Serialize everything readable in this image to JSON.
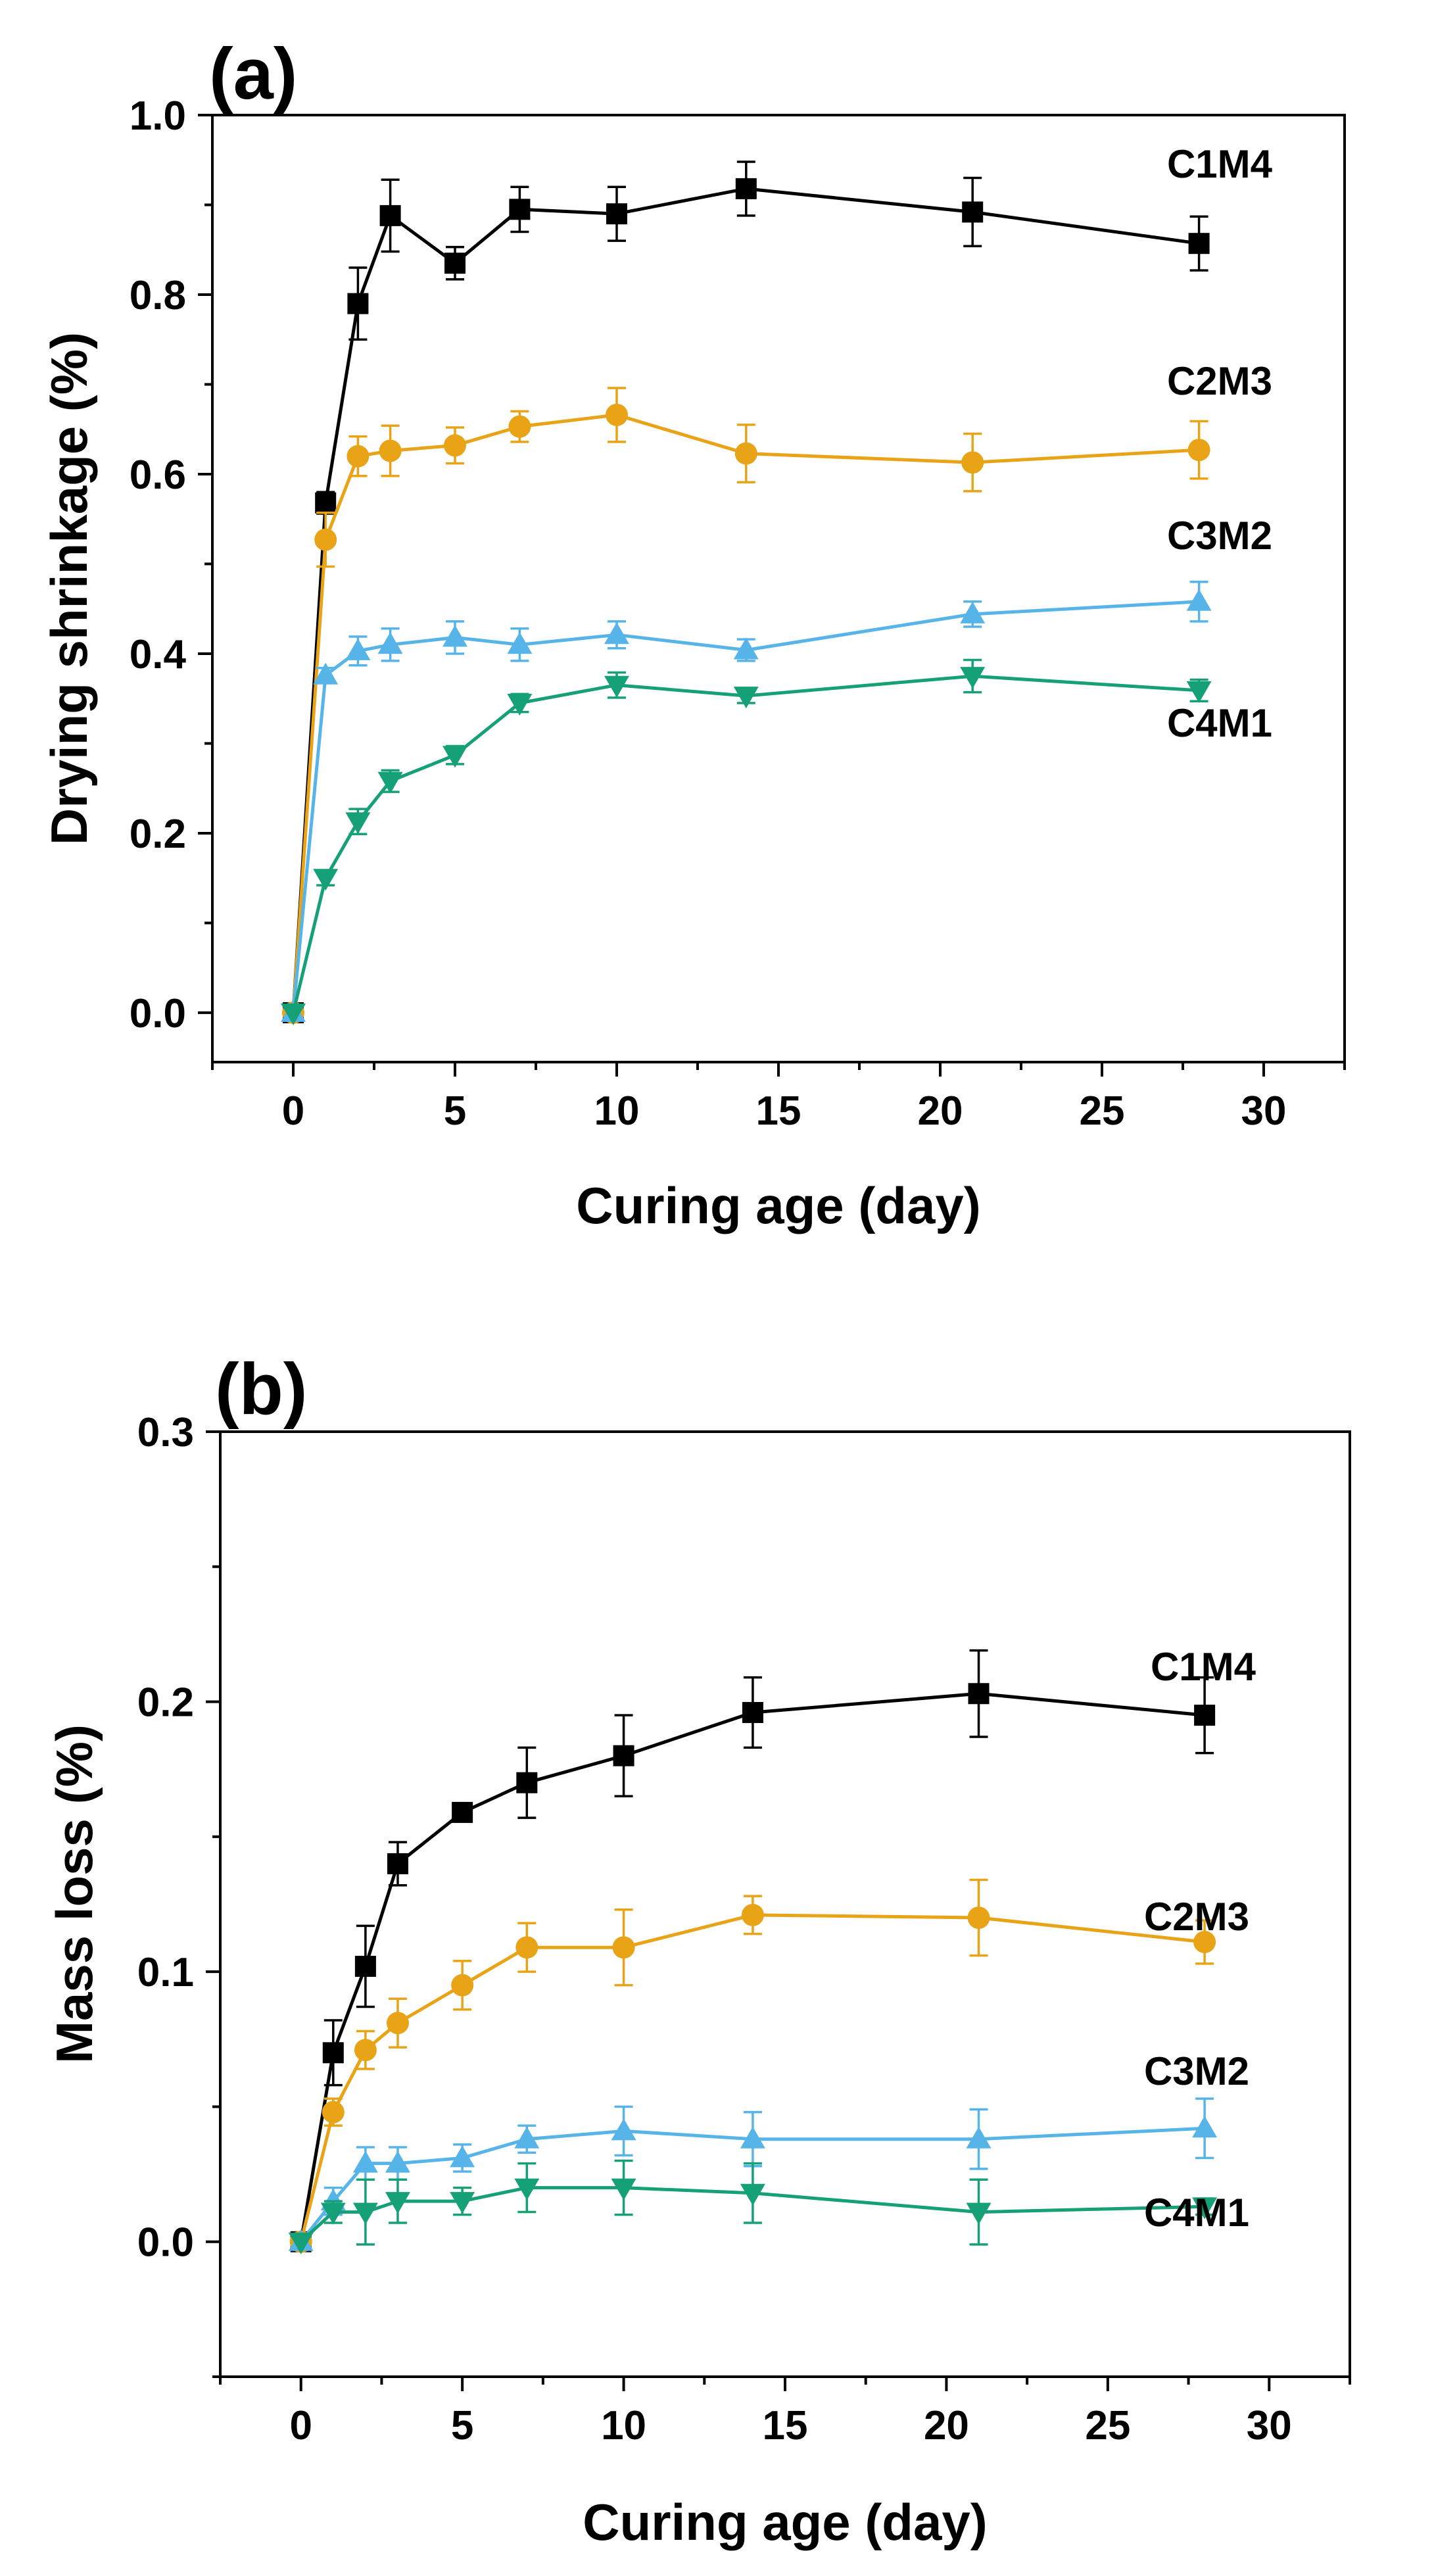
{
  "chart_data": [
    {
      "type": "line",
      "panel_label": "(a)",
      "title": "",
      "xlabel": "Curing age (day)",
      "ylabel": "Drying shrinkage (%)",
      "xlim": [
        -2.5,
        32.5
      ],
      "ylim": [
        -0.055,
        1.0
      ],
      "xticks": [
        0,
        5,
        10,
        15,
        20,
        25,
        30
      ],
      "xtick_labels": [
        "0",
        "5",
        "10",
        "15",
        "20",
        "25",
        "30"
      ],
      "yticks": [
        0.0,
        0.2,
        0.4,
        0.6,
        0.8,
        1.0
      ],
      "ytick_labels": [
        "0.0",
        "0.2",
        "0.4",
        "0.6",
        "0.8",
        "1.0"
      ],
      "x": [
        0,
        1,
        2,
        3,
        5,
        7,
        10,
        14,
        21,
        28
      ],
      "series": [
        {
          "name": "C1M4",
          "color": "#000000",
          "marker": "square",
          "values": [
            0.0,
            0.568,
            0.79,
            0.888,
            0.835,
            0.895,
            0.89,
            0.918,
            0.892,
            0.857
          ],
          "errors": [
            0.0,
            0.012,
            0.04,
            0.04,
            0.018,
            0.025,
            0.03,
            0.03,
            0.038,
            0.03
          ]
        },
        {
          "name": "C2M3",
          "color": "#e8a317",
          "marker": "circle",
          "values": [
            0.0,
            0.527,
            0.62,
            0.626,
            0.632,
            0.653,
            0.666,
            0.623,
            0.613,
            0.627
          ],
          "errors": [
            0.0,
            0.03,
            0.022,
            0.028,
            0.02,
            0.017,
            0.03,
            0.032,
            0.032,
            0.032
          ]
        },
        {
          "name": "C3M2",
          "color": "#56b4e9",
          "marker": "triangle-up",
          "values": [
            0.0,
            0.376,
            0.403,
            0.41,
            0.418,
            0.41,
            0.421,
            0.404,
            0.444,
            0.458
          ],
          "errors": [
            0.0,
            0.008,
            0.016,
            0.018,
            0.018,
            0.018,
            0.015,
            0.012,
            0.014,
            0.022
          ]
        },
        {
          "name": "C4M1",
          "color": "#16a077",
          "marker": "triangle-down",
          "values": [
            0.0,
            0.15,
            0.213,
            0.258,
            0.287,
            0.345,
            0.365,
            0.353,
            0.375,
            0.359
          ],
          "errors": [
            0.0,
            0.008,
            0.014,
            0.012,
            0.01,
            0.01,
            0.014,
            0.008,
            0.018,
            0.012
          ]
        }
      ]
    },
    {
      "type": "line",
      "panel_label": "(b)",
      "title": "",
      "xlabel": "Curing age (day)",
      "ylabel": "Mass loss (%)",
      "xlim": [
        -2.5,
        32.5
      ],
      "ylim": [
        -0.05,
        0.3
      ],
      "xticks": [
        0,
        5,
        10,
        15,
        20,
        25,
        30
      ],
      "xtick_labels": [
        "0",
        "5",
        "10",
        "15",
        "20",
        "25",
        "30"
      ],
      "yticks": [
        0.0,
        0.1,
        0.2,
        0.3
      ],
      "ytick_labels": [
        "0.0",
        "0.1",
        "0.2",
        "0.3"
      ],
      "x": [
        0,
        1,
        2,
        3,
        5,
        7,
        10,
        14,
        21,
        28
      ],
      "series": [
        {
          "name": "C1M4",
          "color": "#000000",
          "marker": "square",
          "values": [
            0.0,
            0.07,
            0.102,
            0.14,
            0.159,
            0.17,
            0.18,
            0.196,
            0.203,
            0.195
          ],
          "errors": [
            0.0,
            0.012,
            0.015,
            0.008,
            0.0,
            0.013,
            0.015,
            0.013,
            0.016,
            0.014
          ]
        },
        {
          "name": "C2M3",
          "color": "#e8a317",
          "marker": "circle",
          "values": [
            0.0,
            0.048,
            0.071,
            0.081,
            0.095,
            0.109,
            0.109,
            0.121,
            0.12,
            0.111
          ],
          "errors": [
            0.0,
            0.005,
            0.007,
            0.009,
            0.009,
            0.009,
            0.014,
            0.007,
            0.014,
            0.008
          ]
        },
        {
          "name": "C3M2",
          "color": "#56b4e9",
          "marker": "triangle-up",
          "values": [
            0.0,
            0.015,
            0.029,
            0.029,
            0.031,
            0.038,
            0.041,
            0.038,
            0.038,
            0.042
          ],
          "errors": [
            0.0,
            0.005,
            0.006,
            0.006,
            0.005,
            0.005,
            0.009,
            0.01,
            0.011,
            0.011
          ]
        },
        {
          "name": "C4M1",
          "color": "#16a077",
          "marker": "triangle-down",
          "values": [
            0.0,
            0.011,
            0.011,
            0.015,
            0.015,
            0.02,
            0.02,
            0.018,
            0.011,
            0.013
          ],
          "errors": [
            0.0,
            0.004,
            0.012,
            0.008,
            0.005,
            0.009,
            0.01,
            0.011,
            0.012,
            0.003
          ]
        }
      ]
    }
  ]
}
